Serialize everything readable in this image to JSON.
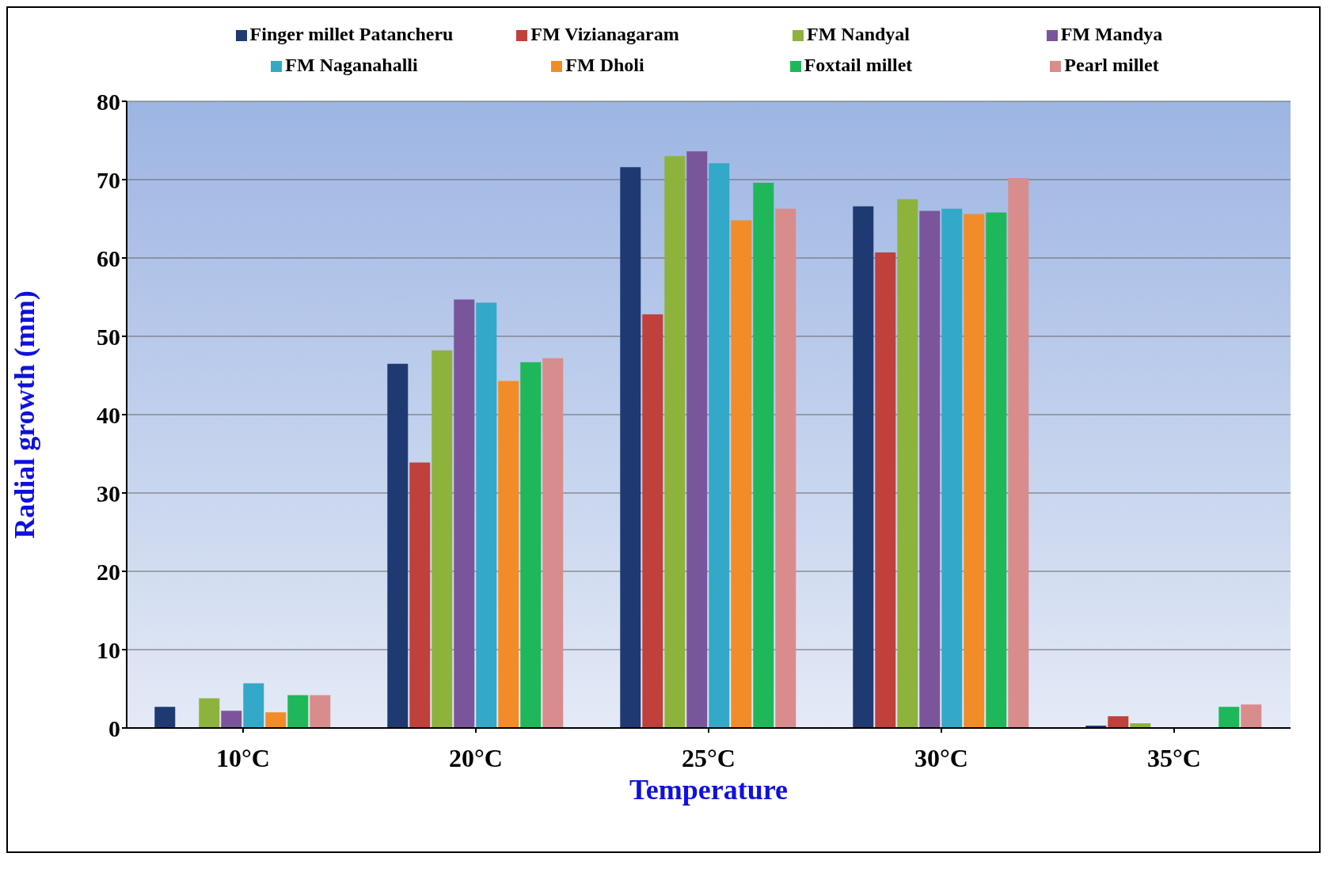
{
  "chart_data": {
    "type": "bar",
    "xlabel": "Temperature",
    "ylabel": "Radial growth (mm)",
    "categories": [
      "10°C",
      "20°C",
      "25°C",
      "30°C",
      "35°C"
    ],
    "ylim": [
      0,
      80
    ],
    "yticks": [
      0,
      10,
      20,
      30,
      40,
      50,
      60,
      70,
      80
    ],
    "grid": "y",
    "legend": "top",
    "series": [
      {
        "name": "Finger millet Patancheru",
        "color": "#1f3a73",
        "values": [
          2.7,
          46.5,
          71.6,
          66.6,
          0.3
        ]
      },
      {
        "name": "FM Vizianagaram",
        "color": "#c0403c",
        "values": [
          0,
          33.9,
          52.8,
          60.7,
          1.5
        ]
      },
      {
        "name": "FM Nandyal",
        "color": "#8db33c",
        "values": [
          3.8,
          48.2,
          73,
          67.5,
          0.6
        ]
      },
      {
        "name": "FM Mandya",
        "color": "#7b559c",
        "values": [
          2.2,
          54.7,
          73.6,
          66,
          0
        ]
      },
      {
        "name": "FM Naganahalli",
        "color": "#34a8c8",
        "values": [
          5.7,
          54.3,
          72.1,
          66.3,
          0
        ]
      },
      {
        "name": "FM Dholi",
        "color": "#f28c28",
        "values": [
          2,
          44.3,
          64.8,
          65.6,
          0
        ]
      },
      {
        "name": "Foxtail millet",
        "color": "#1eb85a",
        "values": [
          4.2,
          46.7,
          69.6,
          65.8,
          2.7
        ]
      },
      {
        "name": "Pearl millet",
        "color": "#d98c8c",
        "values": [
          4.2,
          47.2,
          66.3,
          70.2,
          3
        ]
      }
    ]
  }
}
